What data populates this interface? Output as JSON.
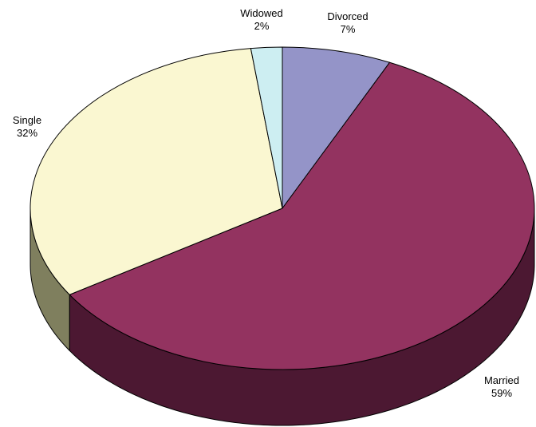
{
  "chart_data": {
    "type": "pie",
    "title": "",
    "three_d": true,
    "start_angle": "top (12 o'clock), clockwise",
    "slices": [
      {
        "label": "Divorced",
        "value": 7,
        "display": "7%",
        "color": "#9494C8",
        "side_color": "#6E6E9A"
      },
      {
        "label": "Married",
        "value": 59,
        "display": "59%",
        "color": "#933360",
        "side_color": "#4C1832"
      },
      {
        "label": "Single",
        "value": 32,
        "display": "32%",
        "color": "#FAF7D1",
        "side_color": "#7F7F5E"
      },
      {
        "label": "Widowed",
        "value": 2,
        "display": "2%",
        "color": "#CDEEF2",
        "side_color": "#8BB5BA"
      }
    ]
  }
}
